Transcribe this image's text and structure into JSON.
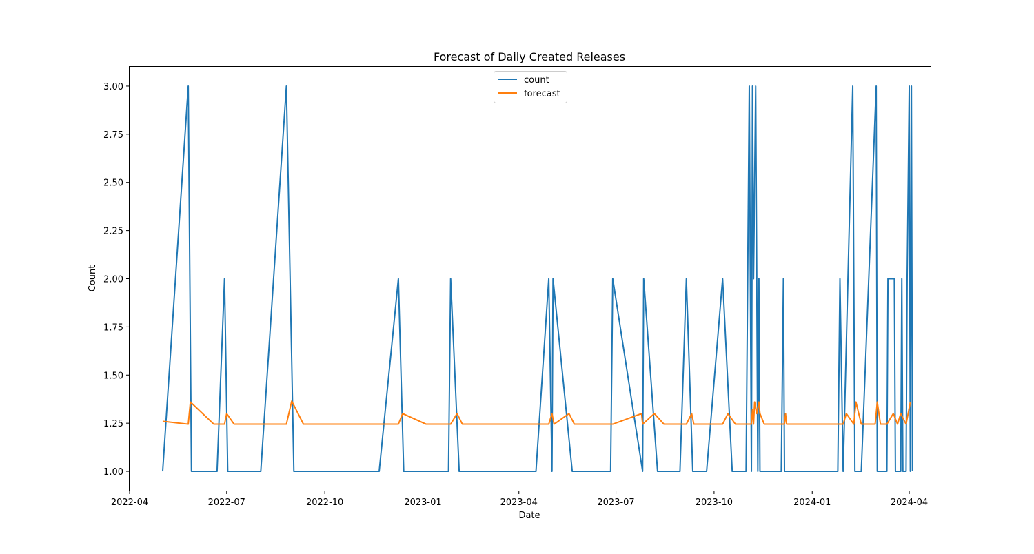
{
  "chart_data": {
    "type": "line",
    "title": "Forecast of Daily Created Releases",
    "xlabel": "Date",
    "ylabel": "Count",
    "xlim": [
      "2022-04-01",
      "2024-04-21"
    ],
    "ylim": [
      0.9,
      3.1
    ],
    "x_ticks": [
      "2022-04",
      "2022-07",
      "2022-10",
      "2023-01",
      "2023-04",
      "2023-07",
      "2023-10",
      "2024-01",
      "2024-04"
    ],
    "y_ticks": [
      "1.00",
      "1.25",
      "1.50",
      "1.75",
      "2.00",
      "2.25",
      "2.50",
      "2.75",
      "3.00"
    ],
    "grid": false,
    "legend_position": "top-center",
    "colors": {
      "count": "#1f77b4",
      "forecast": "#ff7f0e"
    },
    "series": [
      {
        "name": "count",
        "points": [
          [
            "2022-05-02",
            1
          ],
          [
            "2022-05-26",
            3
          ],
          [
            "2022-05-29",
            1
          ],
          [
            "2022-06-22",
            1
          ],
          [
            "2022-06-29",
            2
          ],
          [
            "2022-07-02",
            1
          ],
          [
            "2022-08-02",
            1
          ],
          [
            "2022-08-26",
            3
          ],
          [
            "2022-09-02",
            1
          ],
          [
            "2022-11-21",
            1
          ],
          [
            "2022-12-09",
            2
          ],
          [
            "2022-12-14",
            1
          ],
          [
            "2023-01-25",
            1
          ],
          [
            "2023-01-27",
            2
          ],
          [
            "2023-02-04",
            1
          ],
          [
            "2023-04-17",
            1
          ],
          [
            "2023-04-29",
            2
          ],
          [
            "2023-05-02",
            1
          ],
          [
            "2023-05-03",
            2
          ],
          [
            "2023-05-21",
            1
          ],
          [
            "2023-06-26",
            1
          ],
          [
            "2023-06-28",
            2
          ],
          [
            "2023-07-26",
            1
          ],
          [
            "2023-07-27",
            2
          ],
          [
            "2023-08-09",
            1
          ],
          [
            "2023-08-30",
            1
          ],
          [
            "2023-09-05",
            2
          ],
          [
            "2023-09-11",
            1
          ],
          [
            "2023-09-24",
            1
          ],
          [
            "2023-10-09",
            2
          ],
          [
            "2023-10-18",
            1
          ],
          [
            "2023-10-31",
            1
          ],
          [
            "2023-11-03",
            3
          ],
          [
            "2023-11-05",
            1
          ],
          [
            "2023-11-06",
            3
          ],
          [
            "2023-11-07",
            2
          ],
          [
            "2023-11-09",
            3
          ],
          [
            "2023-11-11",
            1
          ],
          [
            "2023-11-12",
            2
          ],
          [
            "2023-11-13",
            1
          ],
          [
            "2023-12-03",
            1
          ],
          [
            "2023-12-05",
            2
          ],
          [
            "2023-12-06",
            1
          ],
          [
            "2024-01-25",
            1
          ],
          [
            "2024-01-27",
            2
          ],
          [
            "2024-01-30",
            1
          ],
          [
            "2024-02-08",
            3
          ],
          [
            "2024-02-10",
            1
          ],
          [
            "2024-02-16",
            1
          ],
          [
            "2024-03-01",
            3
          ],
          [
            "2024-03-02",
            1
          ],
          [
            "2024-03-11",
            1
          ],
          [
            "2024-03-12",
            2
          ],
          [
            "2024-03-18",
            2
          ],
          [
            "2024-03-19",
            1
          ],
          [
            "2024-03-24",
            1
          ],
          [
            "2024-03-25",
            2
          ],
          [
            "2024-03-26",
            1
          ],
          [
            "2024-03-29",
            1
          ],
          [
            "2024-03-30",
            2
          ],
          [
            "2024-04-01",
            3
          ],
          [
            "2024-04-02",
            1
          ],
          [
            "2024-04-03",
            3
          ],
          [
            "2024-04-04",
            1
          ]
        ]
      },
      {
        "name": "forecast",
        "points": [
          [
            "2022-05-02",
            1.26
          ],
          [
            "2022-05-26",
            1.245
          ],
          [
            "2022-05-28",
            1.36
          ],
          [
            "2022-06-19",
            1.245
          ],
          [
            "2022-06-29",
            1.245
          ],
          [
            "2022-07-01",
            1.3
          ],
          [
            "2022-07-08",
            1.245
          ],
          [
            "2022-08-26",
            1.245
          ],
          [
            "2022-08-31",
            1.365
          ],
          [
            "2022-09-11",
            1.245
          ],
          [
            "2022-12-09",
            1.245
          ],
          [
            "2022-12-13",
            1.3
          ],
          [
            "2023-01-04",
            1.245
          ],
          [
            "2023-01-27",
            1.245
          ],
          [
            "2023-02-02",
            1.3
          ],
          [
            "2023-02-07",
            1.245
          ],
          [
            "2023-04-29",
            1.245
          ],
          [
            "2023-05-02",
            1.3
          ],
          [
            "2023-05-04",
            1.245
          ],
          [
            "2023-05-18",
            1.3
          ],
          [
            "2023-05-23",
            1.245
          ],
          [
            "2023-06-28",
            1.245
          ],
          [
            "2023-07-25",
            1.3
          ],
          [
            "2023-07-26",
            1.245
          ],
          [
            "2023-08-06",
            1.3
          ],
          [
            "2023-08-15",
            1.245
          ],
          [
            "2023-09-05",
            1.245
          ],
          [
            "2023-09-10",
            1.3
          ],
          [
            "2023-09-12",
            1.245
          ],
          [
            "2023-10-09",
            1.245
          ],
          [
            "2023-10-14",
            1.3
          ],
          [
            "2023-10-21",
            1.245
          ],
          [
            "2023-11-05",
            1.245
          ],
          [
            "2023-11-06",
            1.32
          ],
          [
            "2023-11-07",
            1.245
          ],
          [
            "2023-11-08",
            1.36
          ],
          [
            "2023-11-10",
            1.3
          ],
          [
            "2023-11-12",
            1.36
          ],
          [
            "2023-11-13",
            1.3
          ],
          [
            "2023-11-17",
            1.245
          ],
          [
            "2023-12-06",
            1.245
          ],
          [
            "2023-12-07",
            1.3
          ],
          [
            "2023-12-08",
            1.245
          ],
          [
            "2024-01-30",
            1.245
          ],
          [
            "2024-02-02",
            1.3
          ],
          [
            "2024-02-09",
            1.245
          ],
          [
            "2024-02-11",
            1.36
          ],
          [
            "2024-02-16",
            1.245
          ],
          [
            "2024-02-29",
            1.245
          ],
          [
            "2024-03-02",
            1.36
          ],
          [
            "2024-03-05",
            1.245
          ],
          [
            "2024-03-11",
            1.245
          ],
          [
            "2024-03-17",
            1.3
          ],
          [
            "2024-03-21",
            1.245
          ],
          [
            "2024-03-24",
            1.3
          ],
          [
            "2024-03-29",
            1.245
          ],
          [
            "2024-04-02",
            1.36
          ]
        ]
      }
    ]
  }
}
